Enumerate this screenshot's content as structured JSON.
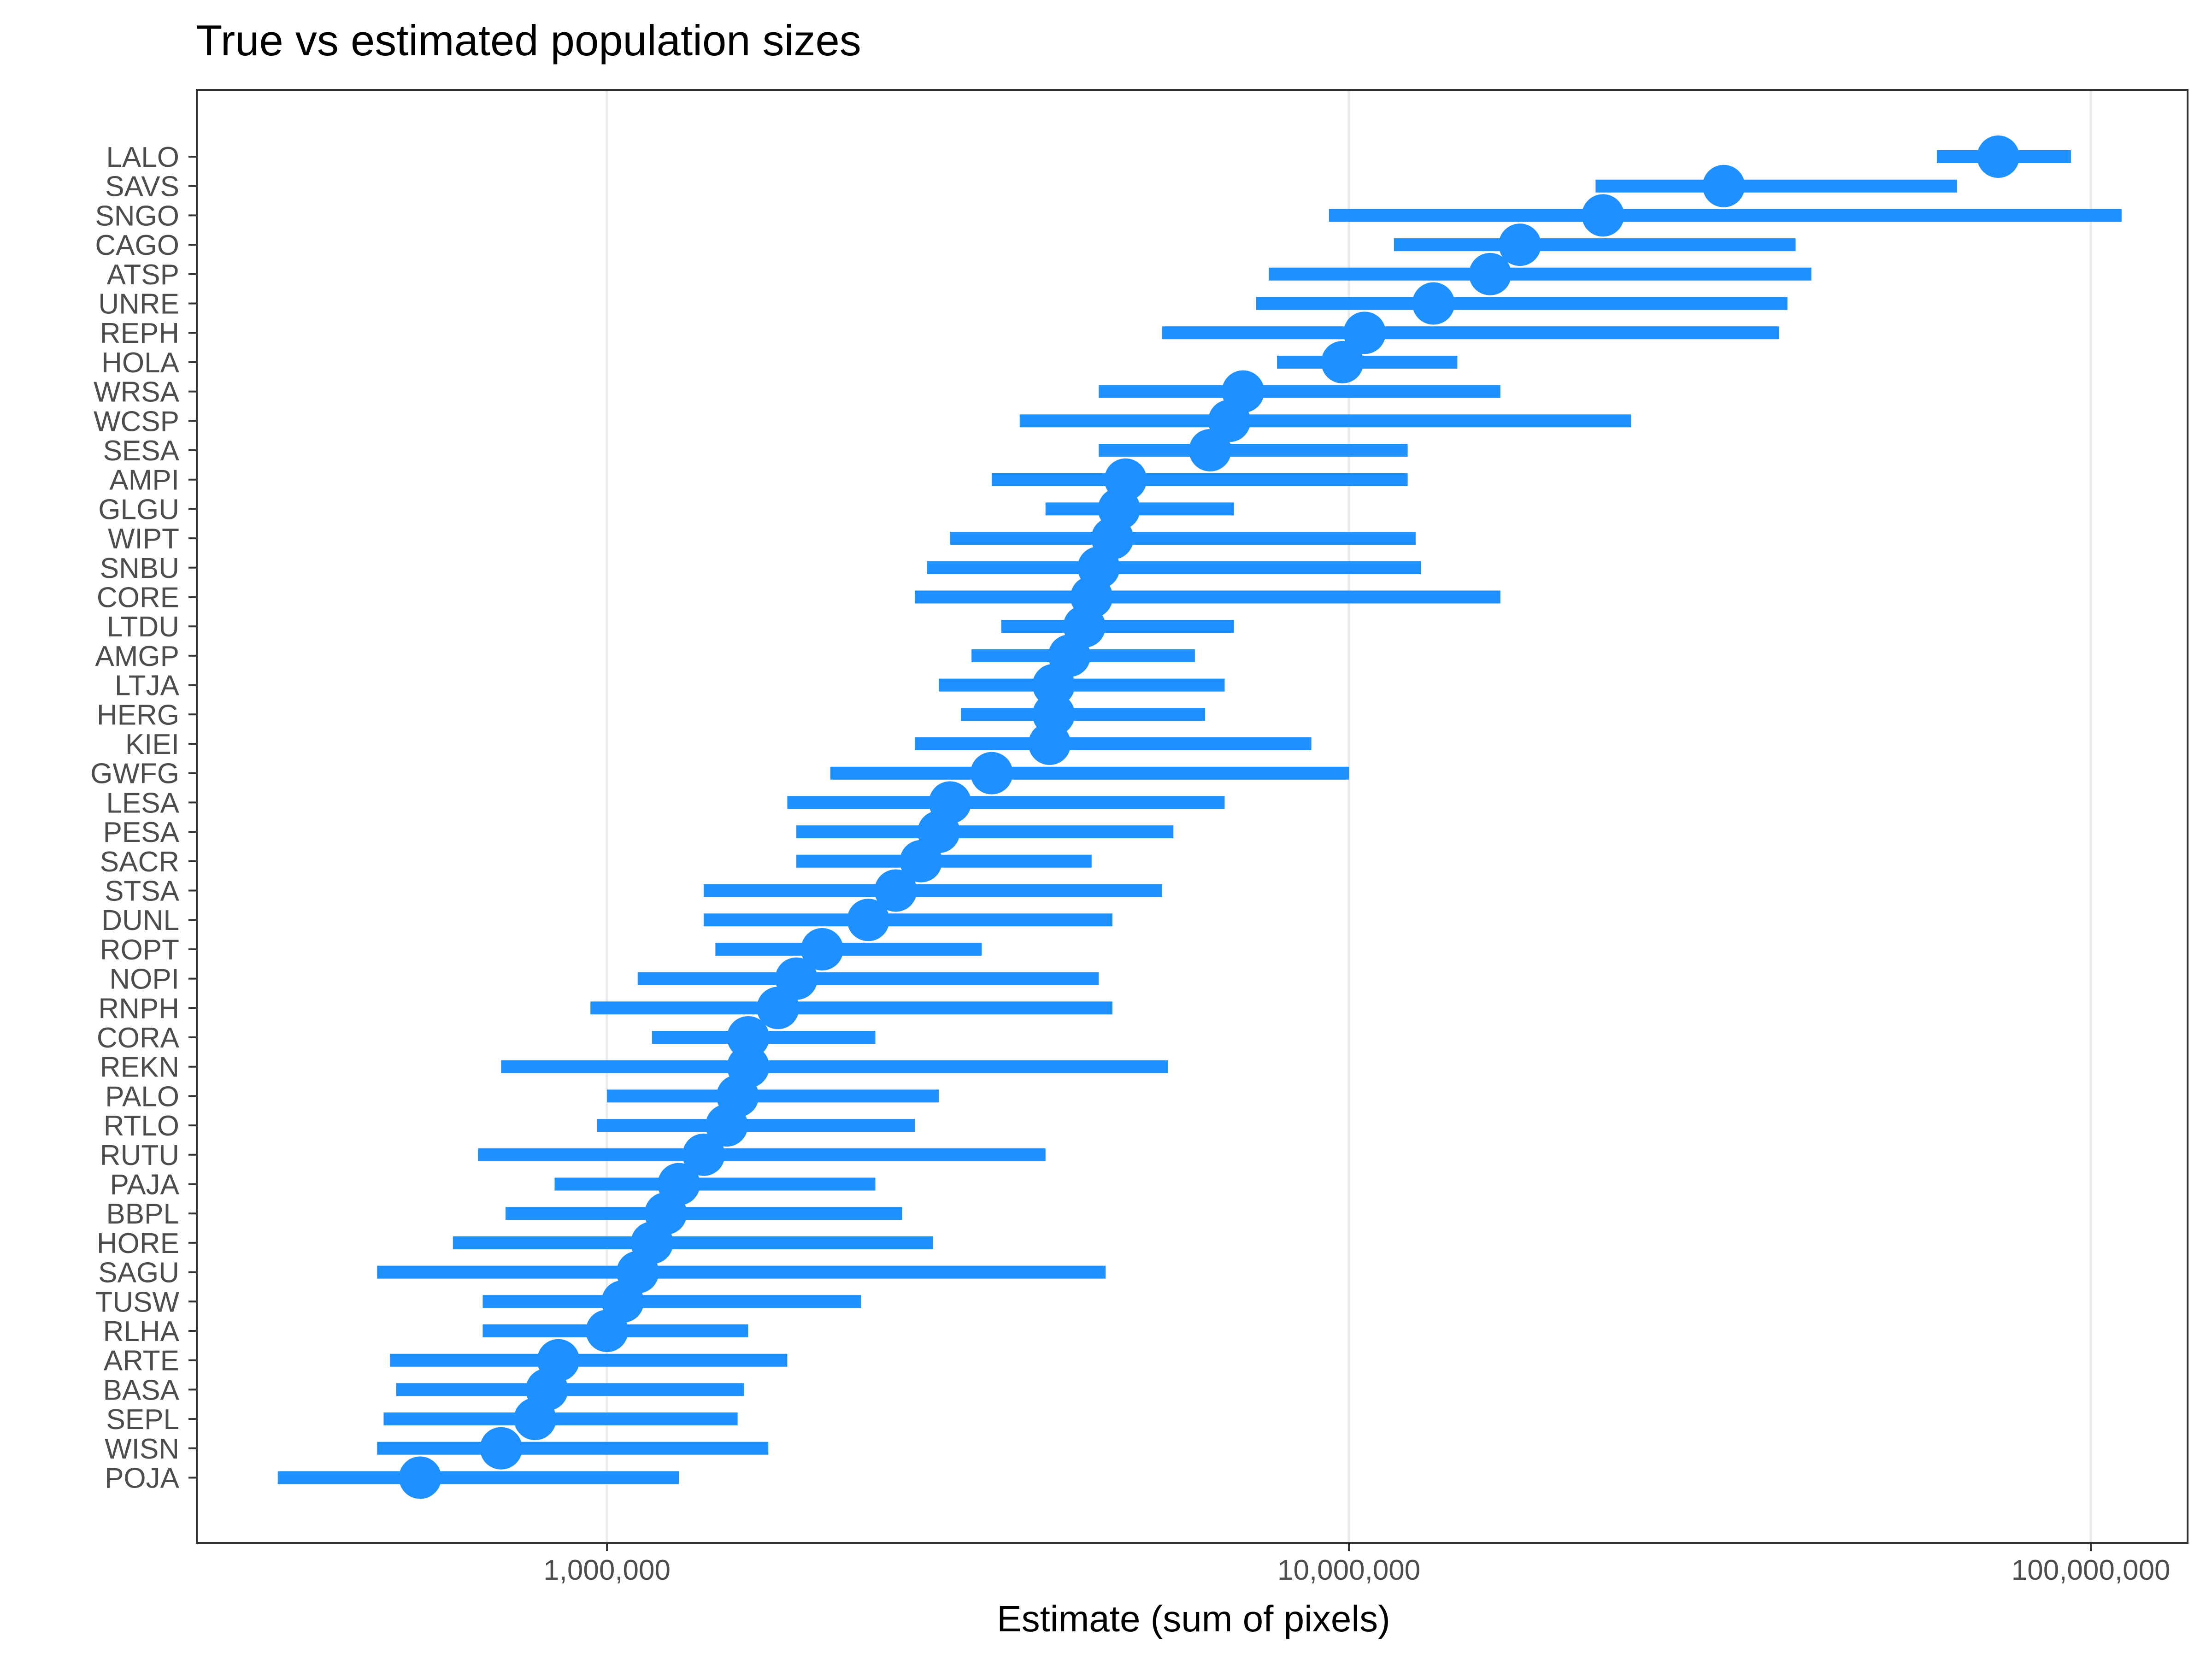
{
  "chart_data": {
    "type": "scatter",
    "title": "True vs estimated population sizes",
    "xlabel": "Estimate (sum of pixels)",
    "ylabel": "",
    "x_scale": "log10",
    "xlim": [
      280000,
      135000000
    ],
    "x_ticks": [
      1000000,
      10000000,
      100000000
    ],
    "x_tick_labels": [
      "1,000,000",
      "10,000,000",
      "100,000,000"
    ],
    "grid": "vertical major lines",
    "legend": "none",
    "point_color": "#1E90FF",
    "categories": [
      "LALO",
      "SAVS",
      "SNGO",
      "CAGO",
      "ATSP",
      "UNRE",
      "REPH",
      "HOLA",
      "WRSA",
      "WCSP",
      "SESA",
      "AMPI",
      "GLGU",
      "WIPT",
      "SNBU",
      "CORE",
      "LTDU",
      "AMGP",
      "LTJA",
      "HERG",
      "KIEI",
      "GWFG",
      "LESA",
      "PESA",
      "SACR",
      "STSA",
      "DUNL",
      "ROPT",
      "NOPI",
      "RNPH",
      "CORA",
      "REKN",
      "PALO",
      "RTLO",
      "RUTU",
      "PAJA",
      "BBPL",
      "HORE",
      "SAGU",
      "TUSW",
      "RLHA",
      "ARTE",
      "BASA",
      "SEPL",
      "WISN",
      "POJA"
    ],
    "estimate": [
      75000000,
      32000000,
      22000000,
      17000000,
      15500000,
      13000000,
      10500000,
      9800000,
      7200000,
      6900000,
      6500000,
      5000000,
      4900000,
      4800000,
      4600000,
      4500000,
      4400000,
      4200000,
      4000000,
      4000000,
      3950000,
      3300000,
      2900000,
      2800000,
      2650000,
      2450000,
      2250000,
      1950000,
      1800000,
      1700000,
      1550000,
      1550000,
      1500000,
      1450000,
      1350000,
      1250000,
      1200000,
      1150000,
      1100000,
      1050000,
      1000000,
      860000,
      830000,
      800000,
      720000,
      560000
    ],
    "lower": [
      62000000,
      21500000,
      9400000,
      11500000,
      7800000,
      7500000,
      5600000,
      8000000,
      4600000,
      3600000,
      4600000,
      3300000,
      3900000,
      2900000,
      2700000,
      2600000,
      3400000,
      3100000,
      2800000,
      3000000,
      2600000,
      2000000,
      1750000,
      1800000,
      1800000,
      1350000,
      1350000,
      1400000,
      1100000,
      950000,
      1150000,
      720000,
      1000000,
      970000,
      670000,
      850000,
      730000,
      620000,
      490000,
      680000,
      680000,
      510000,
      520000,
      500000,
      490000,
      360000
    ],
    "upper": [
      94000000,
      66000000,
      110000000,
      40000000,
      42000000,
      39000000,
      38000000,
      14000000,
      16000000,
      24000000,
      12000000,
      12000000,
      7000000,
      12300000,
      12500000,
      16000000,
      7000000,
      6200000,
      6800000,
      6400000,
      8900000,
      10000000,
      6800000,
      5800000,
      4500000,
      5600000,
      4800000,
      3200000,
      4600000,
      4800000,
      2300000,
      5700000,
      2800000,
      2600000,
      3900000,
      2300000,
      2500000,
      2750000,
      4700000,
      2200000,
      1550000,
      1750000,
      1530000,
      1500000,
      1650000,
      1250000
    ]
  }
}
